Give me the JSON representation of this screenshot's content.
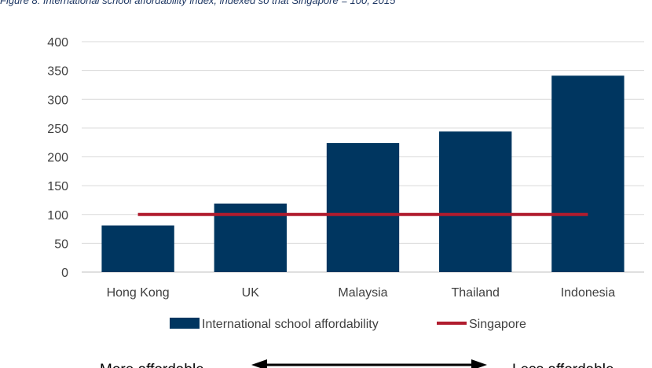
{
  "caption": "Figure 8: International school affordability index, indexed so that Singapore = 100, 2015",
  "chart_data": {
    "type": "bar",
    "categories": [
      "Hong Kong",
      "UK",
      "Malaysia",
      "Thailand",
      "Indonesia"
    ],
    "series": [
      {
        "name": "International school affordability",
        "values": [
          81,
          119,
          224,
          244,
          341
        ]
      }
    ],
    "reference_line": {
      "name": "Singapore",
      "value": 100
    },
    "ylim": [
      0,
      400
    ],
    "yticks": [
      0,
      50,
      100,
      150,
      200,
      250,
      300,
      350,
      400
    ],
    "grid": true,
    "legend_position": "bottom",
    "colors": {
      "bar": "#003660",
      "line": "#b01c2e",
      "grid": "#d9d9d9",
      "axis": "#bfbfbf"
    }
  },
  "scale": {
    "left_label": "More affordable",
    "right_label": "Less affordable"
  }
}
